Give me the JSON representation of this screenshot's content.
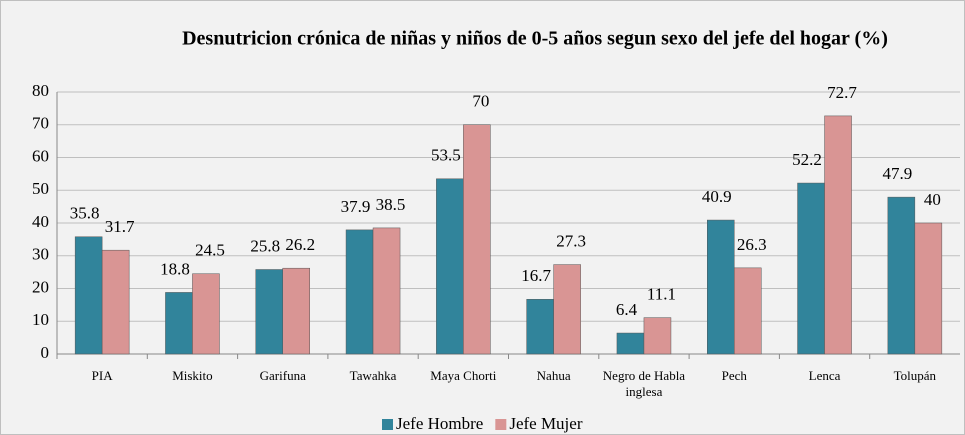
{
  "chart_data": {
    "type": "bar",
    "title": "Desnutricion crónica de niñas y niños de 0-5 años segun sexo del jefe del hogar (%)",
    "categories": [
      "PIA",
      "Miskito",
      "Garifuna",
      "Tawahka",
      "Maya Chorti",
      "Nahua",
      "Negro de Habla inglesa",
      "Pech",
      "Lenca",
      "Tolupán"
    ],
    "series": [
      {
        "name": "Jefe Hombre",
        "color": "#31849b",
        "values": [
          35.8,
          18.8,
          25.8,
          37.9,
          53.5,
          16.7,
          6.4,
          40.9,
          52.2,
          47.9
        ]
      },
      {
        "name": "Jefe Mujer",
        "color": "#d99594",
        "values": [
          31.7,
          24.5,
          26.2,
          38.5,
          70,
          27.3,
          11.1,
          26.3,
          72.7,
          40
        ]
      }
    ],
    "ylim": [
      0,
      80
    ],
    "yticks": [
      0,
      10,
      20,
      30,
      40,
      50,
      60,
      70,
      80
    ],
    "grid": true,
    "legend": "bottom"
  }
}
